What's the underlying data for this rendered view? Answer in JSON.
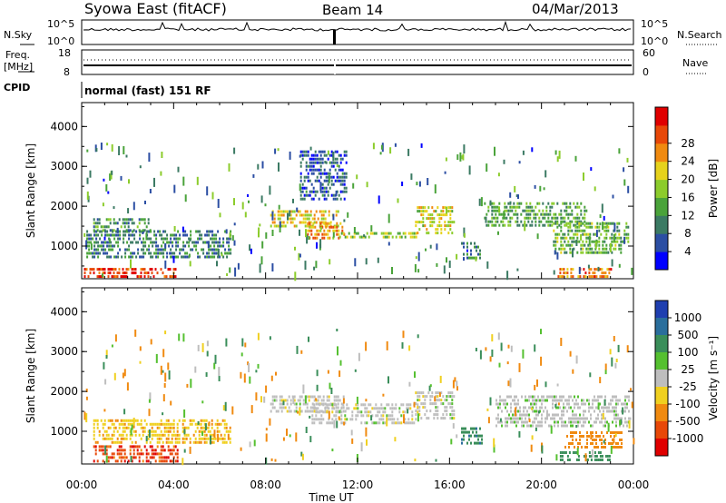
{
  "header": {
    "station": "Syowa East (fitACF)",
    "beam": "Beam 14",
    "date": "04/Mar/2013"
  },
  "top_panels": {
    "nsky_label": "N.Sky",
    "nsky_ticks": [
      "10^5",
      "10^0"
    ],
    "nsearch_label": "N.Search",
    "nsearch_ticks": [
      "10^5",
      "10^0"
    ],
    "freq_label_1": "Freq.",
    "freq_label_2": "[MHz]",
    "freq_ticks": [
      "18",
      "8"
    ],
    "nave_label": "Nave",
    "nave_ticks": [
      "60",
      "0"
    ],
    "cpid_label": "CPID",
    "cpid_value": "normal (fast) 151 RF"
  },
  "chart_data": [
    {
      "type": "heatmap",
      "name": "power",
      "xlabel": "Time UT",
      "ylabel": "Slant Range [km]",
      "xlim": [
        0,
        24
      ],
      "ylim": [
        180,
        4600
      ],
      "ytick_values": [
        1000,
        2000,
        3000,
        4000
      ],
      "ytick_labels": [
        "1000",
        "2000",
        "3000",
        "4000"
      ],
      "colorbar_label": "Power [dB]",
      "colorbar_ticks": [
        "4",
        "8",
        "12",
        "16",
        "20",
        "24",
        "28"
      ],
      "colorbar_colors": [
        "#0000ff",
        "#2b4ea3",
        "#3b7a63",
        "#4aa33a",
        "#8ccc2c",
        "#e6d21c",
        "#f08a10",
        "#e84808",
        "#e00000"
      ],
      "echo_regions": [
        {
          "t0": 0.1,
          "t1": 4.2,
          "r0": 200,
          "r1": 450,
          "value": 27
        },
        {
          "t0": 0.2,
          "t1": 6.5,
          "r0": 700,
          "r1": 1400,
          "value": 9
        },
        {
          "t0": 0.5,
          "t1": 3.0,
          "r0": 1400,
          "r1": 1700,
          "value": 11
        },
        {
          "t0": 8.2,
          "t1": 11.2,
          "r0": 1500,
          "r1": 1900,
          "value": 19
        },
        {
          "t0": 9.8,
          "t1": 11.4,
          "r0": 1150,
          "r1": 1600,
          "value": 22
        },
        {
          "t0": 11.2,
          "t1": 14.6,
          "r0": 1250,
          "r1": 1350,
          "value": 15
        },
        {
          "t0": 14.5,
          "t1": 16.2,
          "r0": 1350,
          "r1": 2000,
          "value": 18
        },
        {
          "t0": 16.5,
          "t1": 17.3,
          "r0": 700,
          "r1": 1100,
          "value": 8
        },
        {
          "t0": 17.5,
          "t1": 22.0,
          "r0": 1500,
          "r1": 2100,
          "value": 12
        },
        {
          "t0": 20.5,
          "t1": 23.8,
          "r0": 800,
          "r1": 1600,
          "value": 13
        },
        {
          "t0": 20.7,
          "t1": 23.0,
          "r0": 200,
          "r1": 450,
          "value": 24
        },
        {
          "t0": 9.5,
          "t1": 11.5,
          "r0": 2200,
          "r1": 3400,
          "value": 6
        }
      ]
    },
    {
      "type": "heatmap",
      "name": "velocity",
      "xlabel": "Time UT",
      "ylabel": "Slant Range [km]",
      "xlim": [
        0,
        24
      ],
      "ylim": [
        180,
        4600
      ],
      "xtick_labels": [
        "00:00",
        "04:00",
        "08:00",
        "12:00",
        "16:00",
        "20:00",
        "00:00"
      ],
      "xtick_values": [
        0,
        4,
        8,
        12,
        16,
        20,
        24
      ],
      "ytick_values": [
        1000,
        2000,
        3000,
        4000
      ],
      "ytick_labels": [
        "1000",
        "2000",
        "3000",
        "4000"
      ],
      "colorbar_label": "Velocity [m s⁻¹]",
      "colorbar_ticks": [
        "1000",
        "500",
        "100",
        "25",
        "-25",
        "-100",
        "-500",
        "-1000"
      ],
      "colorbar_colors": [
        "#1f3fb0",
        "#2a6e9c",
        "#3a8e5a",
        "#55c030",
        "#bebebe",
        "#f0d020",
        "#f08a10",
        "#e84808",
        "#e00000"
      ],
      "echo_regions": [
        {
          "t0": 0.5,
          "t1": 4.2,
          "r0": 250,
          "r1": 650,
          "value": -800
        },
        {
          "t0": 0.5,
          "t1": 6.5,
          "r0": 700,
          "r1": 1300,
          "value": -80
        },
        {
          "t0": 8.2,
          "t1": 11.5,
          "r0": 1450,
          "r1": 1900,
          "value": 0
        },
        {
          "t0": 10.0,
          "t1": 14.6,
          "r0": 1200,
          "r1": 1700,
          "value": 0
        },
        {
          "t0": 14.5,
          "t1": 16.2,
          "r0": 1350,
          "r1": 2000,
          "value": 0
        },
        {
          "t0": 16.5,
          "t1": 17.4,
          "r0": 650,
          "r1": 1100,
          "value": 400
        },
        {
          "t0": 18.0,
          "t1": 23.8,
          "r0": 1100,
          "r1": 1900,
          "value": 5
        },
        {
          "t0": 20.8,
          "t1": 23.0,
          "r0": 300,
          "r1": 500,
          "value": 300
        },
        {
          "t0": 21.0,
          "t1": 23.5,
          "r0": 600,
          "r1": 1000,
          "value": -300
        }
      ]
    }
  ]
}
